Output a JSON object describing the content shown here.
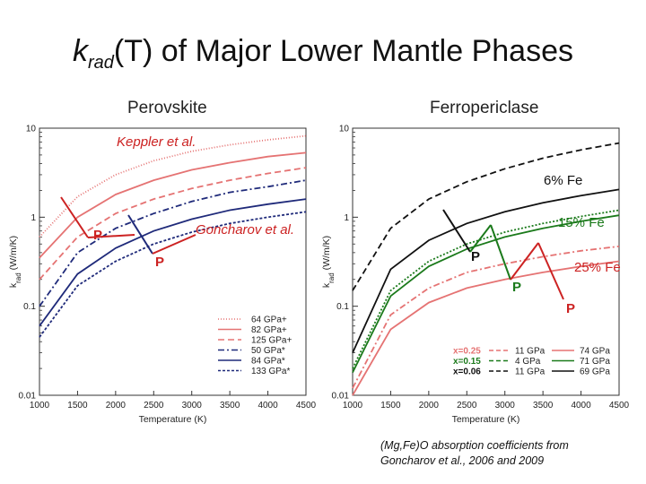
{
  "slide": {
    "title_k": "k",
    "title_sub": "rad",
    "title_rest": "(T) of Major Lower Mantle Phases",
    "perovskite_heading": "Perovskite",
    "ferropericlase_heading": "Ferropericlase",
    "keppler_note": "Keppler et al.",
    "goncharov_note": "Goncharov et al.",
    "fe6_label": "6% Fe",
    "fe15_label": "15% Fe",
    "fe25_label": "25% Fe",
    "p_label": "P",
    "caption_line1": "(Mg,Fe)O absorption coefficients from",
    "caption_line2": "Goncharov et al., 2006 and 2009",
    "arrow_colors": {
      "red": "#cc2222",
      "navy": "#1f2a7a",
      "black": "#111111",
      "green": "#1b7a1b"
    }
  },
  "chart_data": [
    {
      "type": "line",
      "panel": "Perovskite",
      "xlabel": "Temperature (K)",
      "ylabel": "k_rad (W/m/K)",
      "xlim": [
        1000,
        4500
      ],
      "ylim": [
        0.01,
        10
      ],
      "yscale": "log",
      "xticks": [
        "1000",
        "1500",
        "2000",
        "2500",
        "3000",
        "3500",
        "4000",
        "4500"
      ],
      "yticks": [
        "10",
        "1",
        "0.1",
        "0.01"
      ],
      "legend_position": "bottom-right",
      "series": [
        {
          "name": "64 GPa+",
          "color": "#e57373",
          "dash": "1,2",
          "x": [
            1000,
            1500,
            2000,
            2500,
            3000,
            3500,
            4000,
            4500
          ],
          "y": [
            0.6,
            1.7,
            3.0,
            4.3,
            5.5,
            6.5,
            7.4,
            8.2
          ]
        },
        {
          "name": "82 GPa+",
          "color": "#e57373",
          "dash": "",
          "x": [
            1000,
            1500,
            2000,
            2500,
            3000,
            3500,
            4000,
            4500
          ],
          "y": [
            0.35,
            1.0,
            1.8,
            2.6,
            3.4,
            4.1,
            4.8,
            5.3
          ]
        },
        {
          "name": "125 GPa+",
          "color": "#e57373",
          "dash": "7,4",
          "x": [
            1000,
            1500,
            2000,
            2500,
            3000,
            3500,
            4000,
            4500
          ],
          "y": [
            0.2,
            0.6,
            1.1,
            1.6,
            2.1,
            2.6,
            3.1,
            3.6
          ]
        },
        {
          "name": "50 GPa*",
          "color": "#1f2a7a",
          "dash": "7,3,2,3",
          "x": [
            1000,
            1500,
            2000,
            2500,
            3000,
            3500,
            4000,
            4500
          ],
          "y": [
            0.1,
            0.4,
            0.75,
            1.1,
            1.5,
            1.9,
            2.2,
            2.6
          ]
        },
        {
          "name": "84 GPa*",
          "color": "#1f2a7a",
          "dash": "",
          "x": [
            1000,
            1500,
            2000,
            2500,
            3000,
            3500,
            4000,
            4500
          ],
          "y": [
            0.06,
            0.23,
            0.45,
            0.7,
            0.95,
            1.2,
            1.4,
            1.6
          ]
        },
        {
          "name": "133 GPa*",
          "color": "#1f2a7a",
          "dash": "3,2",
          "x": [
            1000,
            1500,
            2000,
            2500,
            3000,
            3500,
            4000,
            4500
          ],
          "y": [
            0.045,
            0.17,
            0.32,
            0.5,
            0.68,
            0.85,
            1.0,
            1.15
          ]
        }
      ]
    },
    {
      "type": "line",
      "panel": "Ferropericlase",
      "xlabel": "Temperature (K)",
      "ylabel": "k_rad (W/m/K)",
      "xlim": [
        1000,
        4500
      ],
      "ylim": [
        0.01,
        10
      ],
      "yscale": "log",
      "xticks": [
        "1000",
        "1500",
        "2000",
        "2500",
        "3000",
        "3500",
        "4000",
        "4500"
      ],
      "yticks": [
        "10",
        "1",
        "0.1",
        "0.01"
      ],
      "legend_position": "bottom-right",
      "legend_rows": [
        {
          "composition": "x=0.25",
          "color": "#e57373",
          "dashed": "11 GPa",
          "solid": "74 GPa"
        },
        {
          "composition": "x=0.15",
          "color": "#1b7a1b",
          "dashed": "4 GPa",
          "solid": "71 GPa"
        },
        {
          "composition": "x=0.06",
          "color": "#111111",
          "dashed": "11 GPa",
          "solid": "69 GPa"
        }
      ],
      "series": [
        {
          "name": "x=0.06 11 GPa",
          "color": "#111111",
          "dash": "7,4",
          "x": [
            1000,
            1500,
            2000,
            2500,
            3000,
            3500,
            4000,
            4500
          ],
          "y": [
            0.15,
            0.75,
            1.6,
            2.5,
            3.5,
            4.6,
            5.7,
            6.8
          ]
        },
        {
          "name": "x=0.06 69 GPa",
          "color": "#111111",
          "dash": "",
          "x": [
            1000,
            1500,
            2000,
            2500,
            3000,
            3500,
            4000,
            4500
          ],
          "y": [
            0.03,
            0.26,
            0.55,
            0.85,
            1.15,
            1.45,
            1.75,
            2.05
          ]
        },
        {
          "name": "x=0.15 4 GPa",
          "color": "#1b7a1b",
          "dash": "2,2",
          "x": [
            1000,
            1500,
            2000,
            2500,
            3000,
            3500,
            4000,
            4500
          ],
          "y": [
            0.02,
            0.15,
            0.32,
            0.5,
            0.68,
            0.85,
            1.02,
            1.2
          ]
        },
        {
          "name": "x=0.15 71 GPa",
          "color": "#1b7a1b",
          "dash": "",
          "x": [
            1000,
            1500,
            2000,
            2500,
            3000,
            3500,
            4000,
            4500
          ],
          "y": [
            0.018,
            0.13,
            0.28,
            0.44,
            0.6,
            0.75,
            0.9,
            1.05
          ]
        },
        {
          "name": "x=0.25 11 GPa",
          "color": "#e57373",
          "dash": "7,3,2,3",
          "x": [
            1000,
            1500,
            2000,
            2500,
            3000,
            3500,
            4000,
            4500
          ],
          "y": [
            0.012,
            0.08,
            0.16,
            0.24,
            0.3,
            0.36,
            0.42,
            0.47
          ]
        },
        {
          "name": "x=0.25 74 GPa",
          "color": "#e57373",
          "dash": "",
          "x": [
            1000,
            1500,
            2000,
            2500,
            3000,
            3500,
            4000,
            4500
          ],
          "y": [
            0.01,
            0.055,
            0.11,
            0.16,
            0.2,
            0.24,
            0.28,
            0.32
          ]
        }
      ]
    }
  ]
}
